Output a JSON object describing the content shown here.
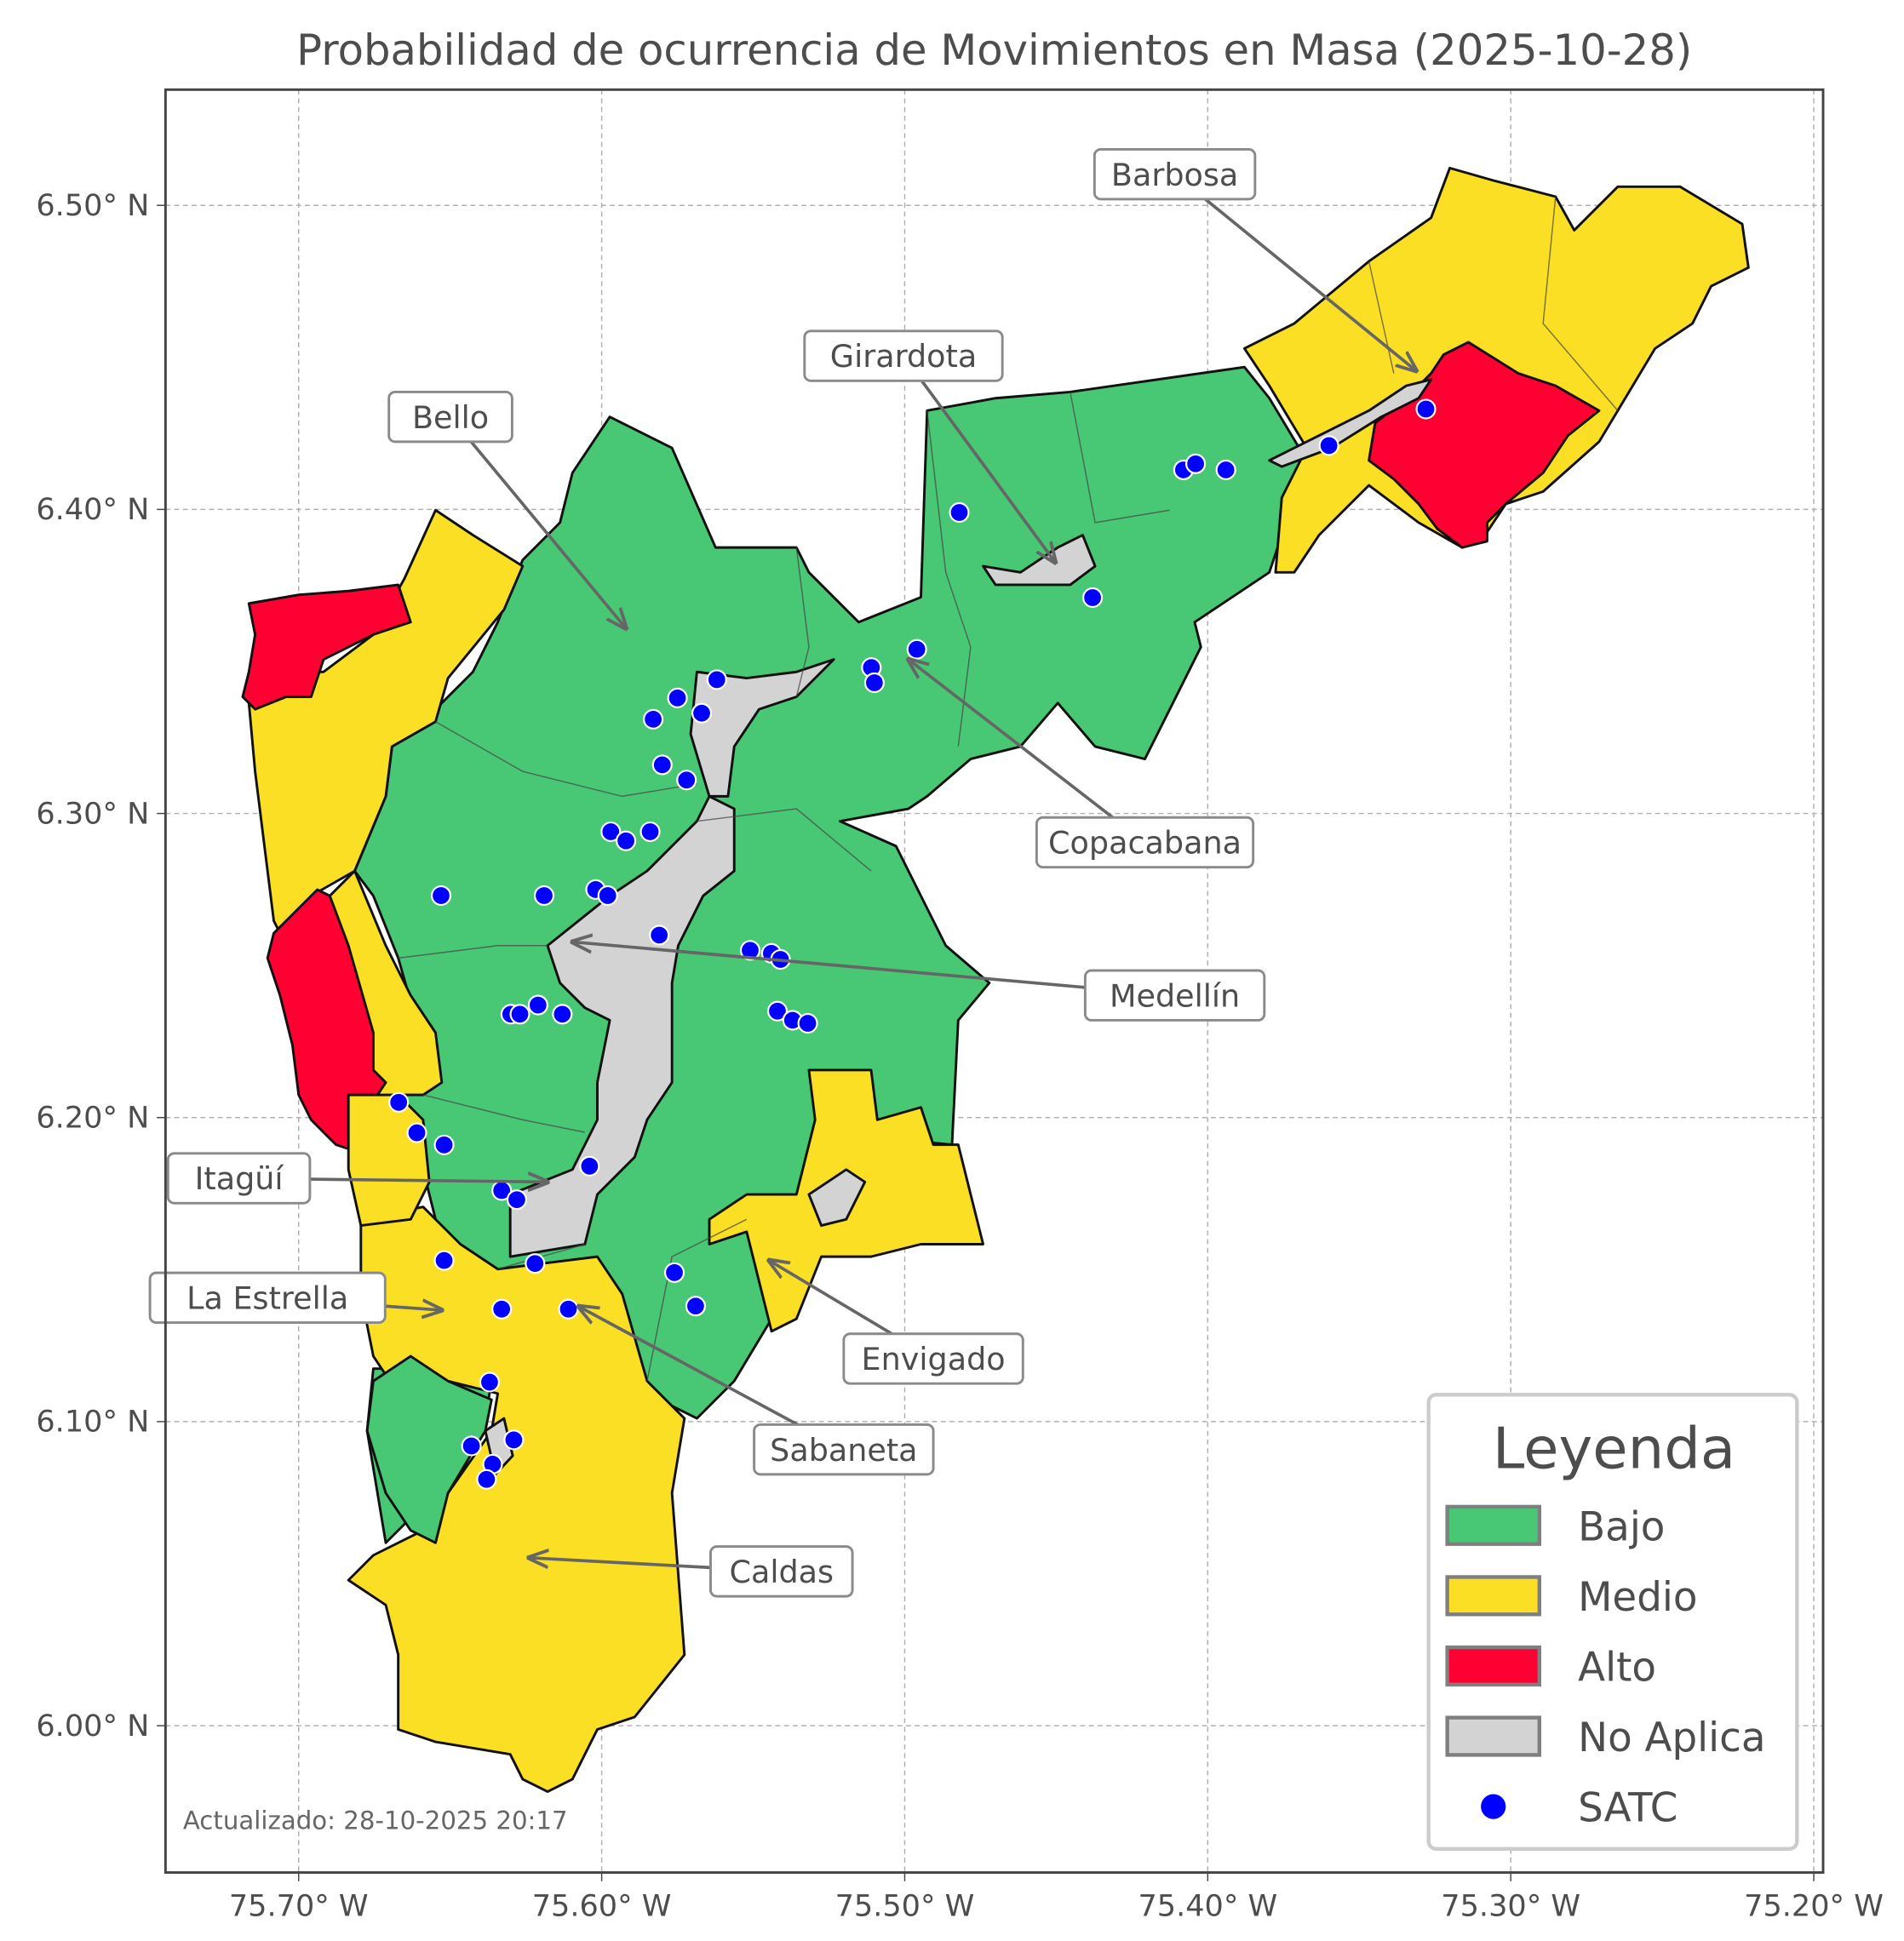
{
  "title": "Probabilidad de ocurrencia de Movimientos en Masa (2025-10-28)",
  "footnote": "Actualizado: 28-10-2025 20:17",
  "axes": {
    "x_ticks": [
      "75.70° W",
      "75.60° W",
      "75.50° W",
      "75.40° W",
      "75.30° W",
      "75.20° W"
    ],
    "y_ticks": [
      "6.50° N",
      "6.40° N",
      "6.30° N",
      "6.20° N",
      "6.10° N",
      "6.00° N"
    ],
    "xlim": [
      -75.745,
      -75.198
    ],
    "ylim": [
      5.955,
      6.542
    ],
    "grid": true
  },
  "legend": {
    "title": "Leyenda",
    "placement": "bottom-right",
    "items": [
      {
        "label": "Bajo",
        "color": "#48c774",
        "type": "patch"
      },
      {
        "label": "Medio",
        "color": "#fbdf24",
        "type": "patch"
      },
      {
        "label": "Alto",
        "color": "#ff0033",
        "type": "patch"
      },
      {
        "label": "No Aplica",
        "color": "#d3d3d3",
        "type": "patch"
      },
      {
        "label": "SATC",
        "color": "#0000ff",
        "type": "point"
      }
    ]
  },
  "municipality_labels": [
    "Barbosa",
    "Girardota",
    "Bello",
    "Copacabana",
    "Medellín",
    "Itagüí",
    "La Estrella",
    "Envigado",
    "Sabaneta",
    "Caldas"
  ],
  "satc_points": [
    [
      -75.328,
      6.433
    ],
    [
      -75.36,
      6.421
    ],
    [
      -75.408,
      6.413
    ],
    [
      -75.404,
      6.415
    ],
    [
      -75.394,
      6.413
    ],
    [
      -75.482,
      6.399
    ],
    [
      -75.438,
      6.371
    ],
    [
      -75.496,
      6.354
    ],
    [
      -75.511,
      6.348
    ],
    [
      -75.51,
      6.343
    ],
    [
      -75.562,
      6.344
    ],
    [
      -75.575,
      6.338
    ],
    [
      -75.583,
      6.331
    ],
    [
      -75.567,
      6.333
    ],
    [
      -75.58,
      6.316
    ],
    [
      -75.572,
      6.311
    ],
    [
      -75.597,
      6.294
    ],
    [
      -75.592,
      6.291
    ],
    [
      -75.584,
      6.294
    ],
    [
      -75.653,
      6.273
    ],
    [
      -75.619,
      6.273
    ],
    [
      -75.602,
      6.275
    ],
    [
      -75.598,
      6.273
    ],
    [
      -75.581,
      6.26
    ],
    [
      -75.551,
      6.255
    ],
    [
      -75.544,
      6.254
    ],
    [
      -75.541,
      6.252
    ],
    [
      -75.542,
      6.235
    ],
    [
      -75.537,
      6.232
    ],
    [
      -75.532,
      6.231
    ],
    [
      -75.63,
      6.234
    ],
    [
      -75.627,
      6.234
    ],
    [
      -75.621,
      6.237
    ],
    [
      -75.613,
      6.234
    ],
    [
      -75.667,
      6.205
    ],
    [
      -75.661,
      6.195
    ],
    [
      -75.652,
      6.191
    ],
    [
      -75.604,
      6.184
    ],
    [
      -75.633,
      6.176
    ],
    [
      -75.628,
      6.173
    ],
    [
      -75.652,
      6.153
    ],
    [
      -75.622,
      6.152
    ],
    [
      -75.576,
      6.149
    ],
    [
      -75.569,
      6.138
    ],
    [
      -75.633,
      6.137
    ],
    [
      -75.611,
      6.137
    ],
    [
      -75.637,
      6.113
    ],
    [
      -75.643,
      6.092
    ],
    [
      -75.629,
      6.094
    ],
    [
      -75.636,
      6.086
    ],
    [
      -75.638,
      6.081
    ]
  ]
}
